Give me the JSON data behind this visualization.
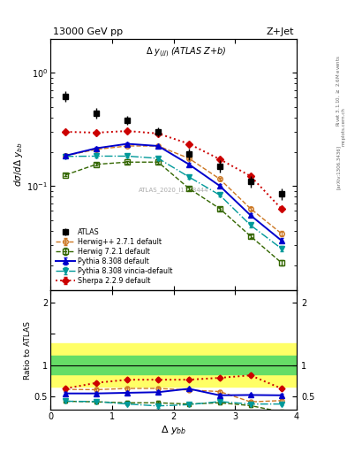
{
  "title_left": "13000 GeV pp",
  "title_right": "Z+Jet",
  "plot_label": "$\\Delta\\ y_{(jj)}$ (ATLAS Z+b)",
  "watermark": "ATLAS_2020_I1788444",
  "xlabel": "$\\Delta\\ y_{bb}$",
  "ylabel_main": "$d\\sigma/d\\Delta\\ y_{bb}$",
  "ylabel_ratio": "Ratio to ATLAS",
  "rivet_label": "Rivet 3.1.10, $\\geq$ 2.6M events",
  "arxiv_label": "[arXiv:1306.3436]",
  "mcplots_label": "mcplots.cern.ch",
  "x_atlas": [
    0.25,
    0.75,
    1.25,
    1.75,
    2.25,
    2.75,
    3.25,
    3.75
  ],
  "y_atlas": [
    0.62,
    0.44,
    0.38,
    0.3,
    0.19,
    0.15,
    0.11,
    0.085
  ],
  "y_herwig271": [
    0.185,
    0.21,
    0.225,
    0.225,
    0.175,
    0.115,
    0.063,
    0.038
  ],
  "y_herwig721": [
    0.125,
    0.155,
    0.162,
    0.162,
    0.095,
    0.063,
    0.036,
    0.021
  ],
  "y_pythia8308": [
    0.185,
    0.215,
    0.235,
    0.225,
    0.155,
    0.1,
    0.055,
    0.033
  ],
  "y_pythia8308v": [
    0.182,
    0.183,
    0.183,
    0.175,
    0.12,
    0.083,
    0.045,
    0.028
  ],
  "y_sherpa": [
    0.3,
    0.295,
    0.305,
    0.29,
    0.235,
    0.172,
    0.122,
    0.063
  ],
  "err_atlas": [
    0.07,
    0.05,
    0.035,
    0.028,
    0.022,
    0.018,
    0.013,
    0.01
  ],
  "err_herwig271": [
    0.005,
    0.005,
    0.005,
    0.005,
    0.004,
    0.003,
    0.002,
    0.002
  ],
  "err_herwig721": [
    0.004,
    0.004,
    0.004,
    0.004,
    0.003,
    0.002,
    0.0015,
    0.001
  ],
  "err_pythia8308": [
    0.005,
    0.005,
    0.005,
    0.005,
    0.004,
    0.003,
    0.002,
    0.0015
  ],
  "err_pythia8308v": [
    0.005,
    0.005,
    0.005,
    0.005,
    0.004,
    0.003,
    0.002,
    0.0015
  ],
  "err_sherpa": [
    0.005,
    0.005,
    0.005,
    0.005,
    0.005,
    0.004,
    0.003,
    0.002
  ],
  "ratio_herwig271": [
    0.61,
    0.605,
    0.625,
    0.625,
    0.6,
    0.575,
    0.41,
    0.43
  ],
  "ratio_herwig721": [
    0.42,
    0.41,
    0.395,
    0.395,
    0.375,
    0.395,
    0.35,
    0.25
  ],
  "ratio_pythia8308": [
    0.545,
    0.545,
    0.555,
    0.565,
    0.62,
    0.515,
    0.52,
    0.515
  ],
  "ratio_pythia8308v": [
    0.42,
    0.415,
    0.375,
    0.345,
    0.365,
    0.415,
    0.375,
    0.375
  ],
  "ratio_sherpa": [
    0.625,
    0.715,
    0.765,
    0.765,
    0.765,
    0.795,
    0.835,
    0.625
  ],
  "ratio_err_herwig271": [
    0.025,
    0.025,
    0.025,
    0.025,
    0.022,
    0.022,
    0.02,
    0.02
  ],
  "ratio_err_herwig721": [
    0.025,
    0.025,
    0.025,
    0.025,
    0.022,
    0.022,
    0.02,
    0.02
  ],
  "ratio_err_pythia8308": [
    0.025,
    0.025,
    0.025,
    0.025,
    0.025,
    0.025,
    0.025,
    0.025
  ],
  "ratio_err_pythia8308v": [
    0.025,
    0.025,
    0.025,
    0.025,
    0.025,
    0.025,
    0.025,
    0.025
  ],
  "ratio_err_sherpa": [
    0.025,
    0.025,
    0.025,
    0.025,
    0.025,
    0.025,
    0.025,
    0.025
  ],
  "green_band_lo": 0.85,
  "green_band_hi": 1.15,
  "yellow_band_lo": 0.65,
  "yellow_band_hi": 1.35,
  "color_atlas": "#000000",
  "color_herwig271": "#cc7722",
  "color_herwig721": "#336600",
  "color_pythia8308": "#0000cc",
  "color_pythia8308v": "#009999",
  "color_sherpa": "#cc0000",
  "ylim_main_lo": 0.012,
  "ylim_main_hi": 2.0,
  "ylim_ratio_lo": 0.28,
  "ylim_ratio_hi": 2.2,
  "xlim_lo": 0.0,
  "xlim_hi": 4.0
}
